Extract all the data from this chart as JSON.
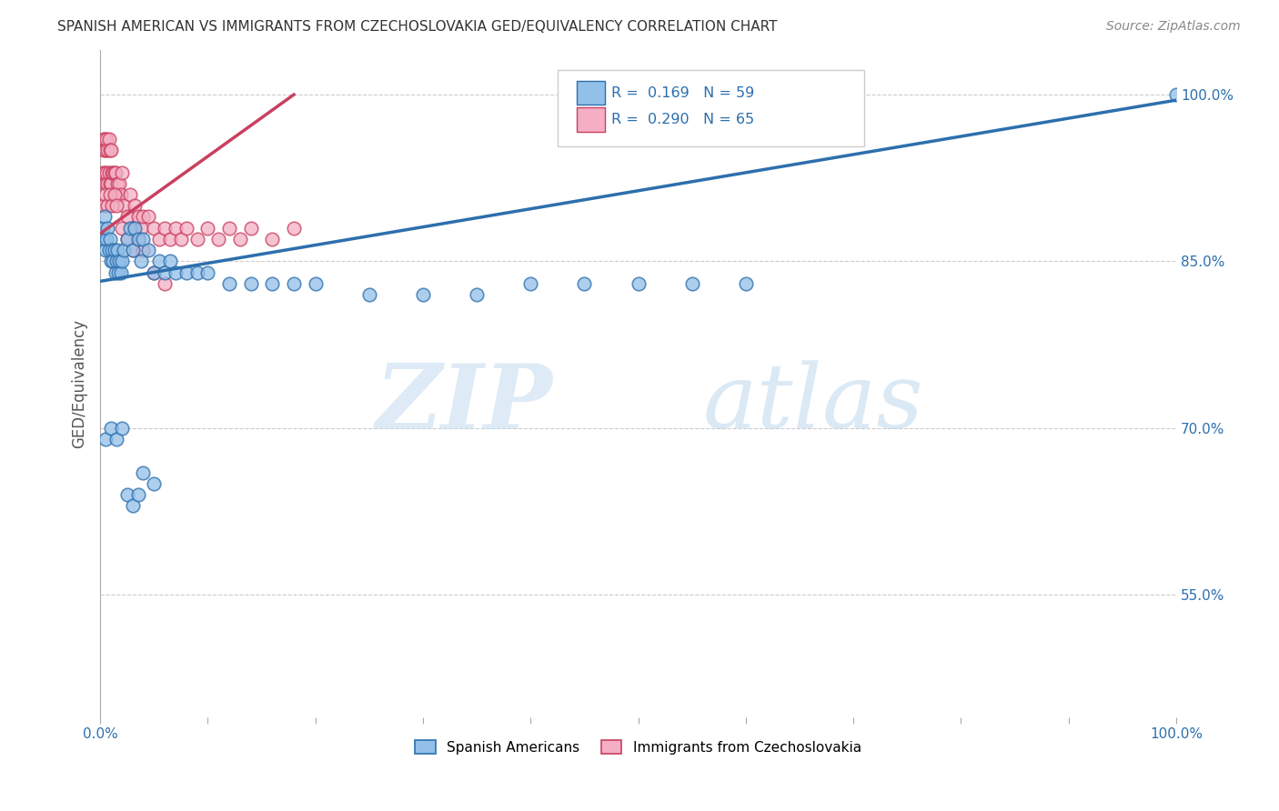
{
  "title": "SPANISH AMERICAN VS IMMIGRANTS FROM CZECHOSLOVAKIA GED/EQUIVALENCY CORRELATION CHART",
  "source": "Source: ZipAtlas.com",
  "ylabel": "GED/Equivalency",
  "xlim": [
    0.0,
    1.0
  ],
  "ylim": [
    0.44,
    1.04
  ],
  "yticks": [
    0.55,
    0.7,
    0.85,
    1.0
  ],
  "ytick_labels": [
    "55.0%",
    "70.0%",
    "85.0%",
    "100.0%"
  ],
  "blue_color": "#92c0e8",
  "pink_color": "#f4afc4",
  "trendline_blue": "#2c6fad",
  "trendline_pink": "#c94060",
  "legend_R_blue": "0.169",
  "legend_N_blue": "59",
  "legend_R_pink": "0.290",
  "legend_N_pink": "65",
  "legend_label_blue": "Spanish Americans",
  "legend_label_pink": "Immigrants from Czechoslovakia",
  "blue_x": [
    0.002,
    0.003,
    0.004,
    0.005,
    0.006,
    0.007,
    0.008,
    0.009,
    0.01,
    0.011,
    0.012,
    0.013,
    0.014,
    0.015,
    0.016,
    0.017,
    0.018,
    0.019,
    0.02,
    0.022,
    0.025,
    0.028,
    0.03,
    0.032,
    0.035,
    0.038,
    0.04,
    0.045,
    0.05,
    0.055,
    0.06,
    0.065,
    0.07,
    0.08,
    0.09,
    0.1,
    0.12,
    0.14,
    0.16,
    0.18,
    0.2,
    0.25,
    0.3,
    0.35,
    0.4,
    0.45,
    0.5,
    0.55,
    0.6,
    1.0,
    0.005,
    0.01,
    0.015,
    0.02,
    0.025,
    0.03,
    0.035,
    0.04,
    0.05
  ],
  "blue_y": [
    0.88,
    0.87,
    0.89,
    0.86,
    0.87,
    0.88,
    0.86,
    0.87,
    0.85,
    0.86,
    0.85,
    0.86,
    0.84,
    0.85,
    0.86,
    0.84,
    0.85,
    0.84,
    0.85,
    0.86,
    0.87,
    0.88,
    0.86,
    0.88,
    0.87,
    0.85,
    0.87,
    0.86,
    0.84,
    0.85,
    0.84,
    0.85,
    0.84,
    0.84,
    0.84,
    0.84,
    0.83,
    0.83,
    0.83,
    0.83,
    0.83,
    0.82,
    0.82,
    0.82,
    0.83,
    0.83,
    0.83,
    0.83,
    0.83,
    1.0,
    0.69,
    0.7,
    0.69,
    0.7,
    0.64,
    0.63,
    0.64,
    0.66,
    0.65
  ],
  "pink_x": [
    0.002,
    0.003,
    0.003,
    0.004,
    0.004,
    0.005,
    0.005,
    0.006,
    0.006,
    0.007,
    0.007,
    0.008,
    0.008,
    0.009,
    0.009,
    0.01,
    0.01,
    0.011,
    0.012,
    0.013,
    0.014,
    0.015,
    0.016,
    0.017,
    0.018,
    0.019,
    0.02,
    0.022,
    0.025,
    0.028,
    0.03,
    0.032,
    0.035,
    0.038,
    0.04,
    0.045,
    0.05,
    0.055,
    0.06,
    0.065,
    0.07,
    0.075,
    0.08,
    0.09,
    0.1,
    0.11,
    0.12,
    0.13,
    0.14,
    0.16,
    0.18,
    0.003,
    0.005,
    0.007,
    0.009,
    0.011,
    0.013,
    0.015,
    0.02,
    0.025,
    0.03,
    0.035,
    0.04,
    0.05,
    0.06
  ],
  "pink_y": [
    0.93,
    0.96,
    0.95,
    0.93,
    0.96,
    0.92,
    0.95,
    0.93,
    0.96,
    0.92,
    0.95,
    0.93,
    0.96,
    0.92,
    0.95,
    0.92,
    0.95,
    0.93,
    0.93,
    0.93,
    0.93,
    0.91,
    0.92,
    0.91,
    0.92,
    0.91,
    0.93,
    0.9,
    0.89,
    0.91,
    0.88,
    0.9,
    0.89,
    0.88,
    0.89,
    0.89,
    0.88,
    0.87,
    0.88,
    0.87,
    0.88,
    0.87,
    0.88,
    0.87,
    0.88,
    0.87,
    0.88,
    0.87,
    0.88,
    0.87,
    0.88,
    0.9,
    0.91,
    0.9,
    0.91,
    0.9,
    0.91,
    0.9,
    0.88,
    0.87,
    0.86,
    0.87,
    0.86,
    0.84,
    0.83
  ],
  "grid_color": "#cccccc",
  "background_color": "#ffffff",
  "blue_trendline_x0": 0.0,
  "blue_trendline_x1": 1.0,
  "blue_trendline_y0": 0.832,
  "blue_trendline_y1": 0.995,
  "pink_trendline_x0": 0.0,
  "pink_trendline_x1": 0.18,
  "pink_trendline_y0": 0.875,
  "pink_trendline_y1": 1.0
}
